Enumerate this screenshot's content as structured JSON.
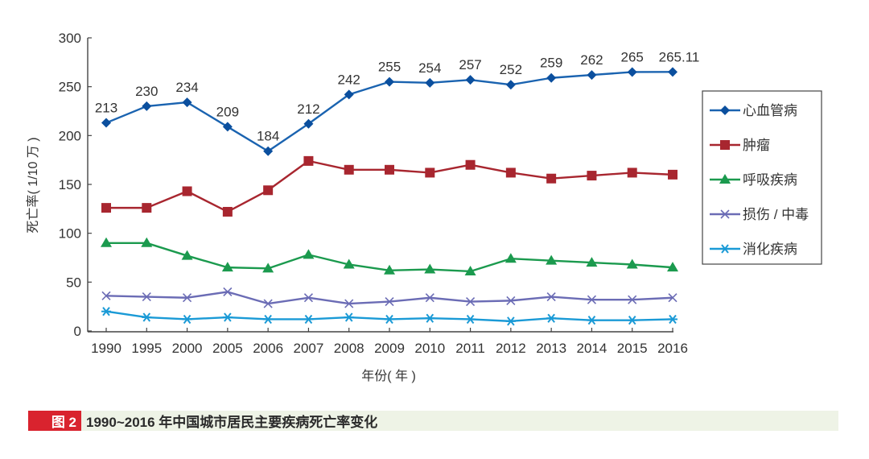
{
  "chart_data": {
    "type": "line",
    "title": "",
    "xlabel": "年份( 年 )",
    "ylabel": "死亡率( 1/10 万 )",
    "ylim": [
      0,
      300
    ],
    "yticks": [
      "0",
      "50",
      "100",
      "150",
      "200",
      "250",
      "300"
    ],
    "categories": [
      "1990",
      "1995",
      "2000",
      "2005",
      "2006",
      "2007",
      "2008",
      "2009",
      "2010",
      "2011",
      "2012",
      "2013",
      "2014",
      "2015",
      "2016"
    ],
    "legend_position": "right",
    "grid": false,
    "series": [
      {
        "name": "心血管病",
        "color": "#1a63b0",
        "marker": "diamond",
        "values": [
          213,
          230,
          234,
          209,
          184,
          212,
          242,
          255,
          254,
          257,
          252,
          259,
          262,
          265,
          265.11
        ],
        "labels": [
          "213",
          "230",
          "234",
          "209",
          "184",
          "212",
          "242",
          "255",
          "254",
          "257",
          "252",
          "259",
          "262",
          "265",
          "265.11"
        ]
      },
      {
        "name": "肿瘤",
        "color": "#a8262f",
        "marker": "square",
        "values": [
          126,
          126,
          143,
          122,
          144,
          174,
          165,
          165,
          162,
          170,
          162,
          156,
          159,
          162,
          160
        ]
      },
      {
        "name": "呼吸疾病",
        "color": "#1b9a4e",
        "marker": "triangle",
        "values": [
          90,
          90,
          77,
          65,
          64,
          78,
          68,
          62,
          63,
          61,
          74,
          72,
          70,
          68,
          65
        ]
      },
      {
        "name": "损伤 / 中毒",
        "color": "#6b6cb5",
        "marker": "x",
        "values": [
          36,
          35,
          34,
          40,
          28,
          34,
          28,
          30,
          34,
          30,
          31,
          35,
          32,
          32,
          34
        ]
      },
      {
        "name": "消化疾病",
        "color": "#1a9ad6",
        "marker": "asterisk",
        "values": [
          20,
          14,
          12,
          14,
          12,
          12,
          14,
          12,
          13,
          12,
          10,
          13,
          11,
          11,
          12
        ]
      }
    ]
  },
  "caption": {
    "tag": "图 2",
    "text": "1990~2016 年中国城市居民主要疾病死亡率变化",
    "tag_color": "#d9232e",
    "band_color": "#eef3e6"
  }
}
